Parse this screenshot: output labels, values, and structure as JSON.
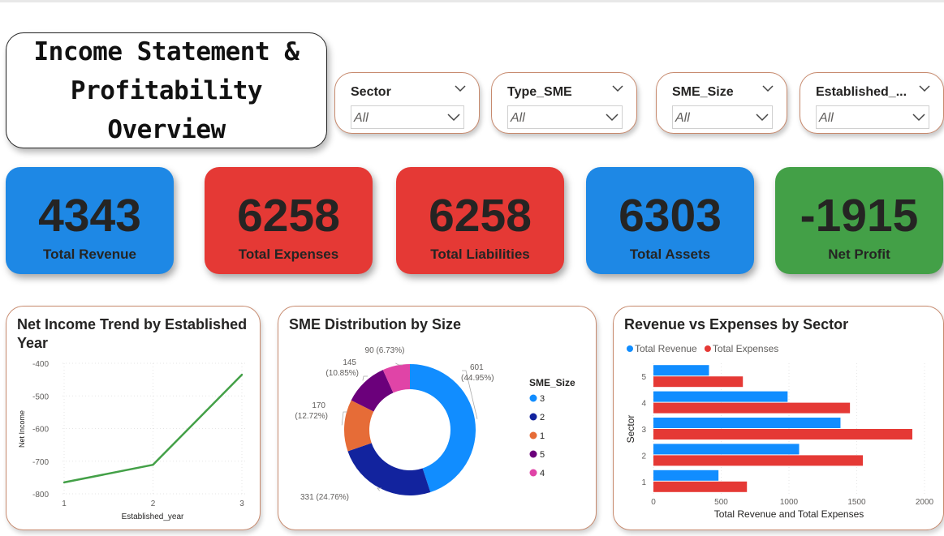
{
  "title": {
    "line1": "Income Statement &",
    "line2": "Profitability Overview"
  },
  "slicers": [
    {
      "title": "Sector",
      "value": "All"
    },
    {
      "title": "Type_SME",
      "value": "All"
    },
    {
      "title": "SME_Size",
      "value": "All"
    },
    {
      "title": "Established_...",
      "value": "All"
    }
  ],
  "kpis": [
    {
      "value": "4343",
      "label": "Total Revenue",
      "color": "#1e88e5"
    },
    {
      "value": "6258",
      "label": "Total Expenses",
      "color": "#e53935"
    },
    {
      "value": "6258",
      "label": "Total Liabilities",
      "color": "#e53935"
    },
    {
      "value": "6303",
      "label": "Total Assets",
      "color": "#1e88e5"
    },
    {
      "value": "-1915",
      "label": "Net Profit",
      "color": "#43a047"
    }
  ],
  "charts": {
    "trend_title": "Net Income Trend by Established Year",
    "donut_title": "SME Distribution by Size",
    "bar_title": "Revenue vs Expenses by Sector"
  },
  "chart_data": [
    {
      "type": "line",
      "title": "Net Income Trend by Established Year",
      "xlabel": "Established_year",
      "ylabel": "Net Income",
      "x": [
        1,
        2,
        3
      ],
      "x_ticks": [
        "1",
        "2",
        "3"
      ],
      "y_ticks": [
        "-400",
        "-500",
        "-600",
        "-700",
        "-800"
      ],
      "ylim": [
        -800,
        -400
      ],
      "series": [
        {
          "values": [
            -765,
            -711,
            -435
          ],
          "color": "#43a047"
        }
      ],
      "grid": true
    },
    {
      "type": "pie",
      "title": "SME Distribution by Size",
      "legend_title": "SME_Size",
      "legend_position": "right",
      "slices": [
        {
          "label": "3",
          "value": 601,
          "percent": "44.95%",
          "color": "#118dff",
          "text": "601 (44.95%)"
        },
        {
          "label": "2",
          "value": 331,
          "percent": "24.76%",
          "color": "#12239e",
          "text": "331 (24.76%)"
        },
        {
          "label": "1",
          "value": 170,
          "percent": "12.72%",
          "color": "#e66c37",
          "text": "170 (12.72%)"
        },
        {
          "label": "5",
          "value": 145,
          "percent": "10.85%",
          "color": "#6b007b",
          "text": "145 (10.85%)"
        },
        {
          "label": "4",
          "value": 90,
          "percent": "6.73%",
          "color": "#e044a7",
          "text": "90 (6.73%)"
        }
      ]
    },
    {
      "type": "bar",
      "orientation": "horizontal",
      "title": "Revenue vs Expenses by Sector",
      "xlabel": "Total Revenue and Total Expenses",
      "ylabel": "Sector",
      "categories": [
        "5",
        "4",
        "3",
        "2",
        "1"
      ],
      "xlim": [
        0,
        2000
      ],
      "x_ticks": [
        "0",
        "500",
        "1000",
        "1500",
        "2000"
      ],
      "legend_position": "top-left",
      "series": [
        {
          "name": "Total Revenue",
          "color": "#118dff",
          "values": [
            410,
            990,
            1380,
            1075,
            480
          ]
        },
        {
          "name": "Total Expenses",
          "color": "#e53935",
          "values": [
            660,
            1450,
            1910,
            1545,
            690
          ]
        }
      ]
    }
  ]
}
